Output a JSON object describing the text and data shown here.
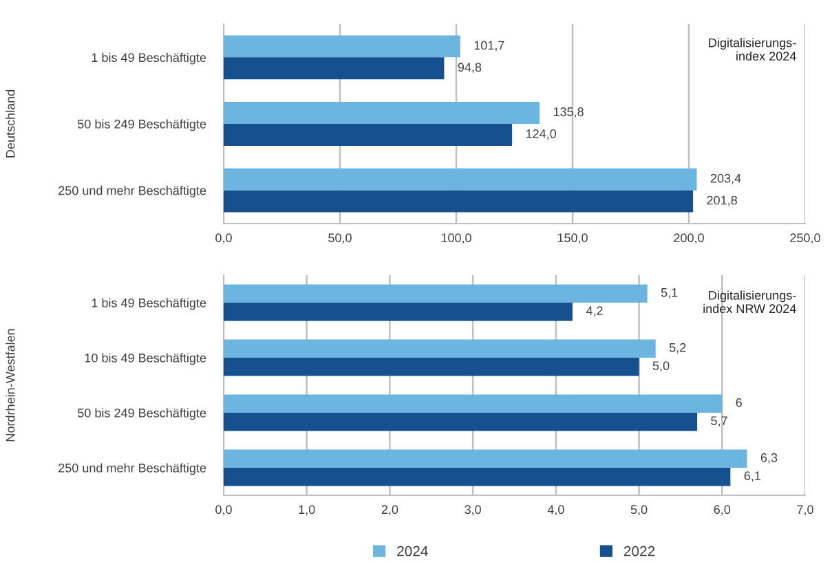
{
  "chart_data": [
    {
      "type": "bar",
      "orientation": "horizontal",
      "ylabel": "Deutschland",
      "categories": [
        "1 bis 49 Beschäftigte",
        "50 bis 249 Beschäftigte",
        "250 und mehr Beschäftigte"
      ],
      "series": [
        {
          "color": "#6db5e1",
          "values": [
            101.7,
            135.8,
            203.4
          ],
          "value_labels": [
            "101,7",
            "135,8",
            "203,4"
          ]
        },
        {
          "color": "#154f8e",
          "values": [
            94.8,
            124.0,
            201.8
          ],
          "value_labels": [
            "94,8",
            "124,0",
            "201,8"
          ]
        }
      ],
      "xlim": [
        0,
        250
      ],
      "xticks": [
        {
          "value": 0,
          "label": "0,0"
        },
        {
          "value": 50,
          "label": "50,0"
        },
        {
          "value": 100,
          "label": "100,0"
        },
        {
          "value": 150,
          "label": "150,0"
        },
        {
          "value": 200,
          "label": "200,0"
        },
        {
          "value": 250,
          "label": "250,0"
        }
      ],
      "grid": "x",
      "legend": false,
      "annotations": [
        "Digitalisierungs-\nindex 2024"
      ]
    },
    {
      "type": "bar",
      "orientation": "horizontal",
      "ylabel": "Nordrhein-Westfalen",
      "categories": [
        "1 bis 49 Beschäftigte",
        "10 bis 49 Beschäftigte",
        "50 bis 249 Beschäftigte",
        "250 und mehr Beschäftigte"
      ],
      "series": [
        {
          "name": "2024",
          "color": "#6db5e1",
          "values": [
            5.1,
            5.2,
            6,
            6.3
          ],
          "value_labels": [
            "5,1",
            "5,2",
            "6",
            "6,3"
          ]
        },
        {
          "name": "2022",
          "color": "#154f8e",
          "values": [
            4.2,
            5.0,
            5.7,
            6.1
          ],
          "value_labels": [
            "4,2",
            "5,0",
            "5,7",
            "6,1"
          ]
        }
      ],
      "xlim": [
        0,
        7
      ],
      "xticks": [
        {
          "value": 0,
          "label": "0,0"
        },
        {
          "value": 1,
          "label": "1,0"
        },
        {
          "value": 2,
          "label": "2,0"
        },
        {
          "value": 3,
          "label": "3,0"
        },
        {
          "value": 4,
          "label": "4,0"
        },
        {
          "value": 5,
          "label": "5,0"
        },
        {
          "value": 6,
          "label": "6,0"
        },
        {
          "value": 7,
          "label": "7,0"
        }
      ],
      "grid": "x",
      "legend": "bottom",
      "annotations": [
        "Digitalisierungs-\nindex NRW 2024"
      ]
    }
  ]
}
